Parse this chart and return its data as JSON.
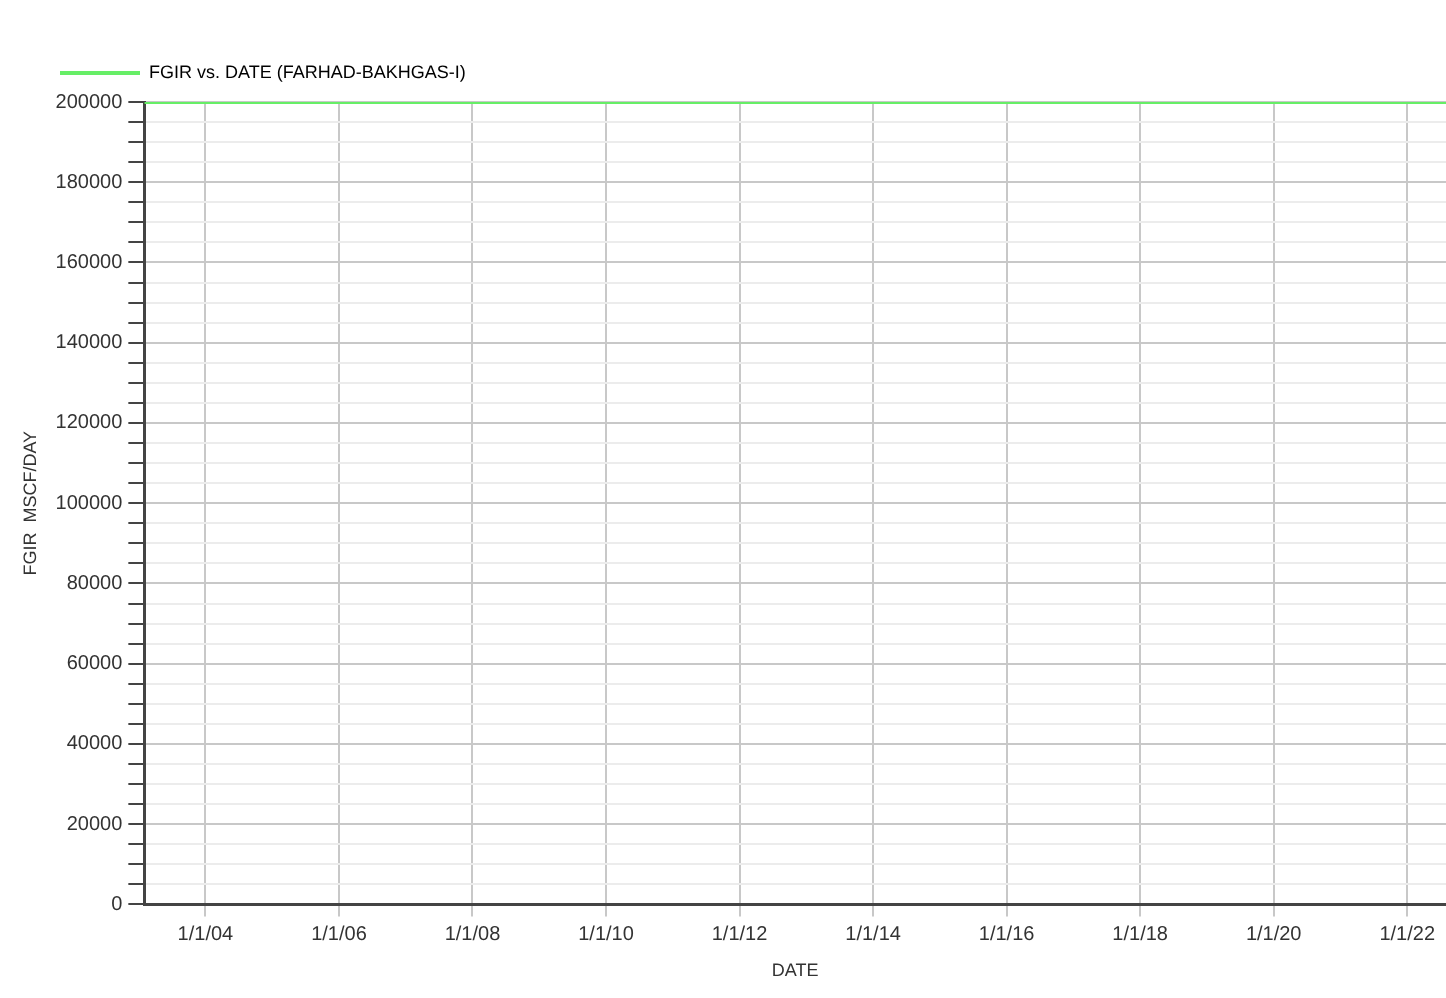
{
  "chart_data": {
    "type": "line",
    "xlabel": "DATE",
    "ylabel": "FGIR  MSCF/DAY",
    "x": [
      "2003-02-01",
      "2022-08-01"
    ],
    "series": [
      {
        "name": "FGIR vs. DATE (FARHAD-BAKHGAS-I)",
        "color": "#66ee66",
        "values": [
          200000,
          200000
        ]
      }
    ],
    "xlim": [
      "2003-02-01",
      "2022-08-01"
    ],
    "xticks": [
      {
        "value": "2004-01-01",
        "label": "1/1/04"
      },
      {
        "value": "2006-01-01",
        "label": "1/1/06"
      },
      {
        "value": "2008-01-01",
        "label": "1/1/08"
      },
      {
        "value": "2010-01-01",
        "label": "1/1/10"
      },
      {
        "value": "2012-01-01",
        "label": "1/1/12"
      },
      {
        "value": "2014-01-01",
        "label": "1/1/14"
      },
      {
        "value": "2016-01-01",
        "label": "1/1/16"
      },
      {
        "value": "2018-01-01",
        "label": "1/1/18"
      },
      {
        "value": "2020-01-01",
        "label": "1/1/20"
      },
      {
        "value": "2022-01-01",
        "label": "1/1/22"
      }
    ],
    "ylim": [
      0,
      200000
    ],
    "yticks": [
      0,
      {
        "value": 5000,
        "label": null
      },
      {
        "value": 10000,
        "label": null
      },
      {
        "value": 15000,
        "label": null
      },
      20000,
      {
        "value": 25000,
        "label": null
      },
      {
        "value": 30000,
        "label": null
      },
      {
        "value": 35000,
        "label": null
      },
      40000,
      {
        "value": 45000,
        "label": null
      },
      {
        "value": 50000,
        "label": null
      },
      {
        "value": 55000,
        "label": null
      },
      60000,
      {
        "value": 65000,
        "label": null
      },
      {
        "value": 70000,
        "label": null
      },
      {
        "value": 75000,
        "label": null
      },
      80000,
      {
        "value": 85000,
        "label": null
      },
      {
        "value": 90000,
        "label": null
      },
      {
        "value": 95000,
        "label": null
      },
      100000,
      {
        "value": 105000,
        "label": null
      },
      {
        "value": 110000,
        "label": null
      },
      {
        "value": 115000,
        "label": null
      },
      120000,
      {
        "value": 125000,
        "label": null
      },
      {
        "value": 130000,
        "label": null
      },
      {
        "value": 135000,
        "label": null
      },
      140000,
      {
        "value": 145000,
        "label": null
      },
      {
        "value": 150000,
        "label": null
      },
      {
        "value": 155000,
        "label": null
      },
      160000,
      {
        "value": 165000,
        "label": null
      },
      {
        "value": 170000,
        "label": null
      },
      {
        "value": 175000,
        "label": null
      },
      180000,
      {
        "value": 185000,
        "label": null
      },
      {
        "value": 190000,
        "label": null
      },
      {
        "value": 195000,
        "label": null
      },
      200000
    ],
    "grid": true,
    "legend": "top left",
    "marker": "none",
    "line_style": "solid"
  }
}
